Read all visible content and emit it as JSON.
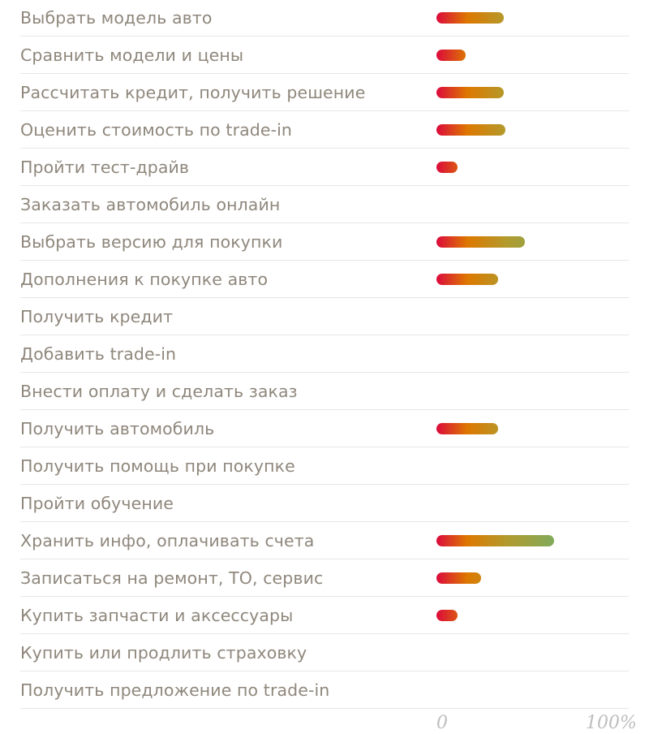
{
  "chart_data": {
    "type": "bar",
    "orientation": "horizontal",
    "categories": [
      "Выбрать модель авто",
      "Сравнить модели и цены",
      "Рассчитать кредит, получить решение",
      "Оценить стоимость по trade-in",
      "Пройти тест-драйв",
      "Заказать автомобиль онлайн",
      "Выбрать версию для покупки",
      "Дополнения к покупке авто",
      "Получить кредит",
      "Добавить trade-in",
      "Внести оплату и сделать заказ",
      "Получить автомобиль",
      "Получить помощь при покупке",
      "Пройти обучение",
      "Хранить инфо, оплачивать счета",
      "Записаться на ремонт, ТО, сервис",
      "Купить запчасти и аксессуары",
      "Купить или продлить страховку",
      "Получить предложение по trade-in"
    ],
    "values": [
      35,
      15,
      35,
      36,
      11,
      0,
      46,
      32,
      0,
      0,
      0,
      32,
      0,
      0,
      61,
      23,
      11,
      0,
      0
    ],
    "xlim": [
      0,
      100
    ],
    "xtick_labels": [
      "0",
      "100%"
    ],
    "grid": false,
    "bar_gradient": [
      "#dc0a3c",
      "#dd7800",
      "#b39a2c",
      "#80ab5c"
    ],
    "label_color": "#8f877c"
  }
}
